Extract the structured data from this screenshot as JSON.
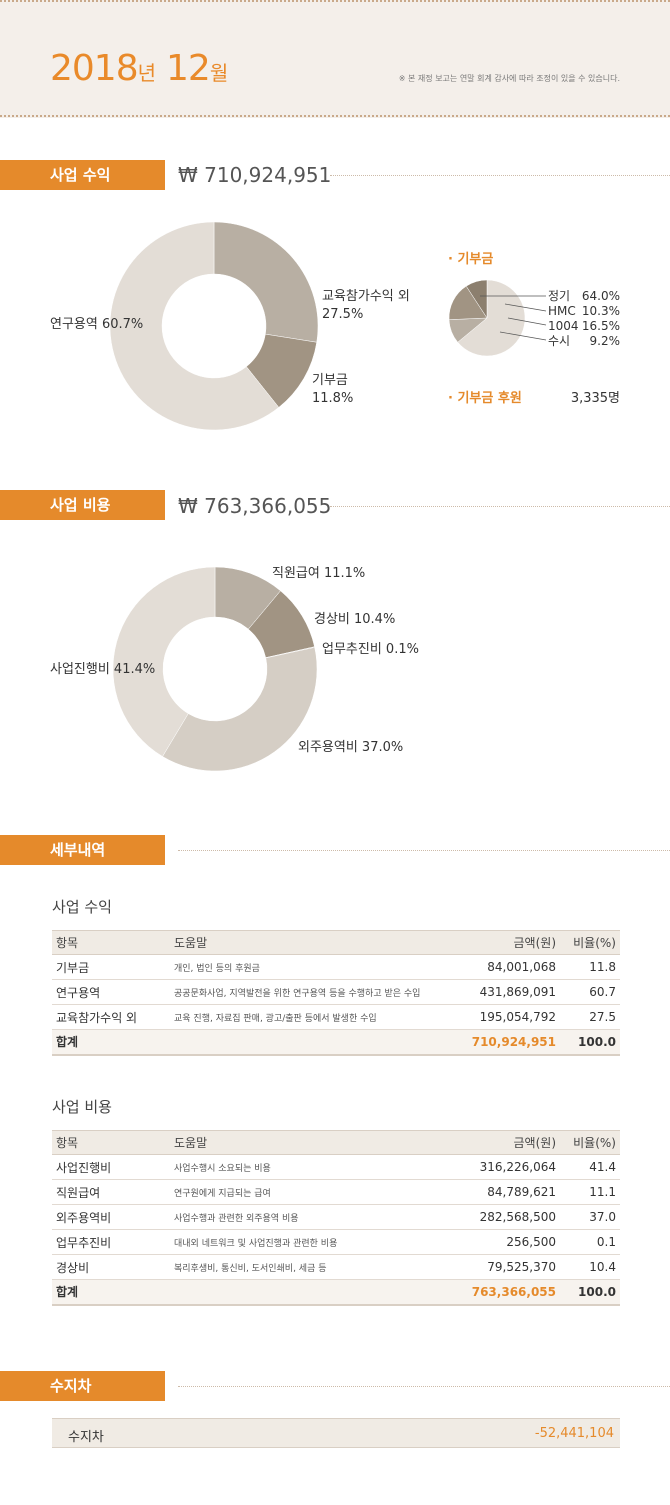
{
  "header": {
    "year": "2018",
    "year_unit": "년",
    "month": "12",
    "month_unit": "월",
    "notice": "※ 본 재정 보고는 연말 회계 감사에 따라 조정이 있을 수 있습니다."
  },
  "revenue": {
    "tag": "사업 수익",
    "amount": "₩ 710,924,951",
    "donut_labels": {
      "research": "연구용역 60.7%",
      "edu_line1": "교육참가수익 외",
      "edu_line2": "27.5%",
      "donation_line1": "기부금",
      "donation_line2": "11.8%"
    },
    "donation_title": "· 기부금",
    "donation_breakdown": [
      {
        "label": "정기",
        "pct": "64.0%"
      },
      {
        "label": "HMC",
        "pct": "10.3%"
      },
      {
        "label": "1004",
        "pct": "16.5%"
      },
      {
        "label": "수시",
        "pct": "9.2%"
      }
    ],
    "sponsor_label": "· 기부금 후원",
    "sponsor_count": "3,335명"
  },
  "expense": {
    "tag": "사업 비용",
    "amount": "₩ 763,366,055",
    "donut_labels": {
      "salary": "직원급여 11.1%",
      "overhead": "경상비 10.4%",
      "business": "업무추진비 0.1%",
      "outsourcing": "외주용역비 37.0%",
      "project": "사업진행비 41.4%"
    }
  },
  "details": {
    "tag": "세부내역",
    "revenue_title": "사업 수익",
    "expense_title": "사업 비용",
    "headers": {
      "item": "항목",
      "desc": "도움말",
      "amount": "금액(원)",
      "ratio": "비율(%)"
    },
    "revenue_rows": [
      {
        "item": "기부금",
        "desc": "개인, 법인 등의 후원금",
        "amount": "84,001,068",
        "ratio": "11.8"
      },
      {
        "item": "연구용역",
        "desc": "공공문화사업, 지역발전을 위한 연구용역 등을 수행하고 받은 수입",
        "amount": "431,869,091",
        "ratio": "60.7"
      },
      {
        "item": "교육참가수익 외",
        "desc": "교육 진행, 자료집 판매, 광고/출판 등에서 발생한 수입",
        "amount": "195,054,792",
        "ratio": "27.5"
      }
    ],
    "revenue_total": {
      "item": "합계",
      "amount": "710,924,951",
      "ratio": "100.0"
    },
    "expense_rows": [
      {
        "item": "사업진행비",
        "desc": "사업수행시 소요되는 비용",
        "amount": "316,226,064",
        "ratio": "41.4"
      },
      {
        "item": "직원급여",
        "desc": "연구원에게 지급되는 급여",
        "amount": "84,789,621",
        "ratio": "11.1"
      },
      {
        "item": "외주용역비",
        "desc": "사업수행과 관련한 외주용역 비용",
        "amount": "282,568,500",
        "ratio": "37.0"
      },
      {
        "item": "업무추진비",
        "desc": "대내외 네트워크 및 사업진행과 관련한 비용",
        "amount": "256,500",
        "ratio": "0.1"
      },
      {
        "item": "경상비",
        "desc": "복리후생비, 통신비, 도서인쇄비, 세금 등",
        "amount": "79,525,370",
        "ratio": "10.4"
      }
    ],
    "expense_total": {
      "item": "합계",
      "amount": "763,366,055",
      "ratio": "100.0"
    }
  },
  "balance": {
    "tag": "수지차",
    "label": "수지차",
    "value": "-52,441,104"
  },
  "chart_data": [
    {
      "type": "pie",
      "categories": [
        "교육참가수익 외",
        "기부금",
        "연구용역"
      ],
      "values": [
        27.5,
        11.8,
        60.7
      ],
      "colors": [
        "#b8afa3",
        "#a19483",
        "#e3ddd6"
      ]
    },
    {
      "type": "pie",
      "categories": [
        "정기",
        "HMC",
        "1004",
        "수시"
      ],
      "values": [
        64.0,
        10.3,
        16.5,
        9.2
      ],
      "colors": [
        "#e3ddd6",
        "#b8afa3",
        "#a19483",
        "#8c7f6e"
      ]
    },
    {
      "type": "pie",
      "categories": [
        "직원급여",
        "경상비",
        "업무추진비",
        "외주용역비",
        "사업진행비"
      ],
      "values": [
        11.1,
        10.4,
        0.1,
        37.0,
        41.4
      ],
      "colors": [
        "#b8afa3",
        "#a19483",
        "#8c7f6e",
        "#d5cec5",
        "#e3ddd6"
      ]
    }
  ]
}
